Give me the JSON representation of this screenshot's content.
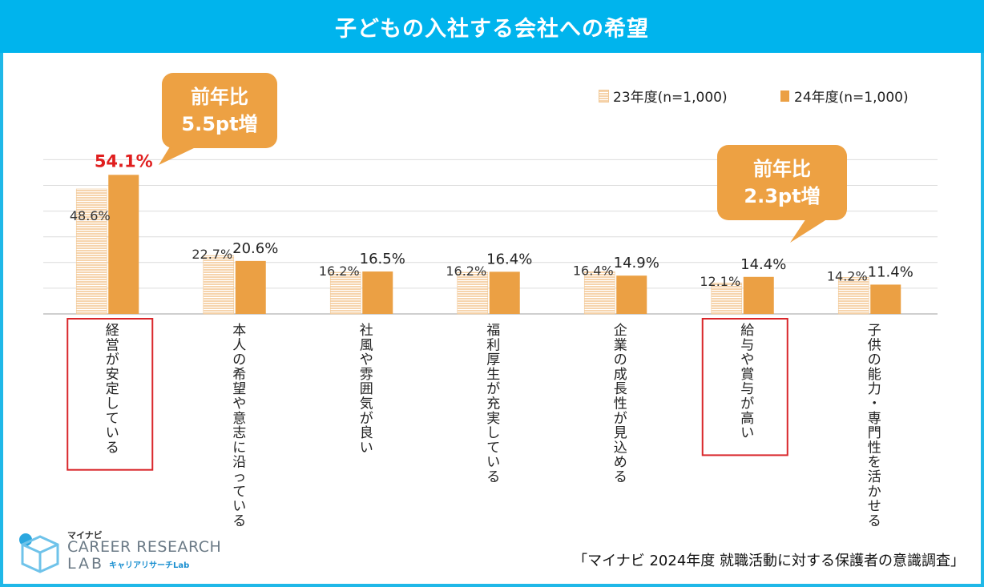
{
  "title": "子どもの入社する会社への希望",
  "legend": {
    "series_23": "23年度(n=1,000)",
    "series_24": "24年度(n=1,000)"
  },
  "callouts": [
    {
      "line1": "前年比",
      "line2": "5.5pt増"
    },
    {
      "line1": "前年比",
      "line2": "2.3pt増"
    }
  ],
  "logo": {
    "brand": "マイナビ",
    "line1": "CAREER RESEARCH",
    "line2": "LAB",
    "sub": "キャリアリサーチLab"
  },
  "source": "「マイナビ 2024年度 就職活動に対する保護者の意識調査」",
  "colors": {
    "header": "#00b4ed",
    "bar_24": "#eba044",
    "bar_23_stripe": "#f6d4ad",
    "highlight_label": "#e01e1e",
    "highlight_box": "#d9262a",
    "callout": "#eda143"
  },
  "chart_data": {
    "type": "bar",
    "title": "子どもの入社する会社への希望",
    "categories": [
      "経営が安定している",
      "本人の希望や意志に沿っている",
      "社風や雰囲気が良い",
      "福利厚生が充実している",
      "企業の成長性が見込める",
      "給与や賞与が高い",
      "子供の能力・専門性を活かせる"
    ],
    "series": [
      {
        "name": "23年度(n=1,000)",
        "values": [
          48.6,
          22.7,
          16.2,
          16.2,
          16.4,
          12.1,
          14.2
        ]
      },
      {
        "name": "24年度(n=1,000)",
        "values": [
          54.1,
          20.6,
          16.5,
          16.4,
          14.9,
          14.4,
          11.4
        ]
      }
    ],
    "value_labels_23": [
      "48.6%",
      "22.7%",
      "16.2%",
      "16.2%",
      "16.4%",
      "12.1%",
      "14.2%"
    ],
    "value_labels_24": [
      "54.1%",
      "20.6%",
      "16.5%",
      "16.4%",
      "14.9%",
      "14.4%",
      "11.4%"
    ],
    "highlighted_categories": [
      0,
      5
    ],
    "ylim": [
      0,
      60
    ],
    "grid": true,
    "legend": "top-right",
    "xlabel": "",
    "ylabel": ""
  }
}
